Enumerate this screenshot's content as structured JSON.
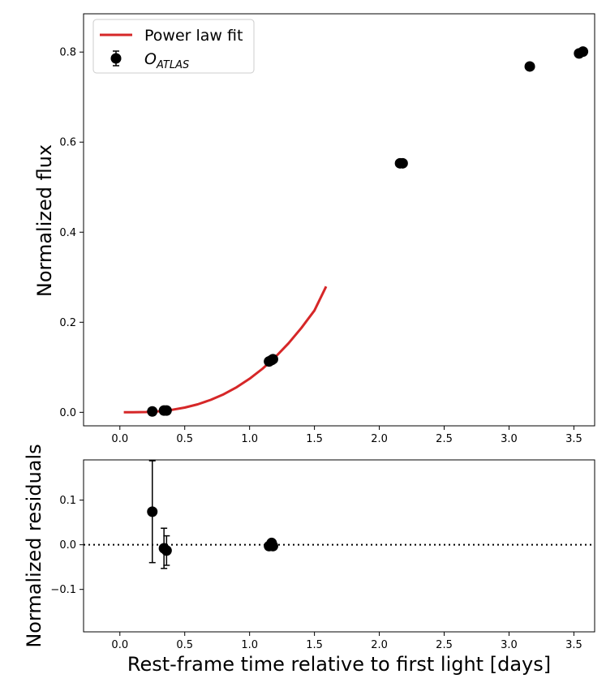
{
  "chart_data": [
    {
      "panel": "top",
      "type": "scatter",
      "ylabel": "Normalized flux",
      "xlabel": "",
      "xlim": [
        -0.28,
        3.66
      ],
      "ylim": [
        -0.03,
        0.885
      ],
      "xticks": [
        0.0,
        0.5,
        1.0,
        1.5,
        2.0,
        2.5,
        3.0,
        3.5
      ],
      "xtick_labels": [
        "0.0",
        "0.5",
        "1.0",
        "1.5",
        "2.0",
        "2.5",
        "3.0",
        "3.5"
      ],
      "yticks": [
        0.0,
        0.2,
        0.4,
        0.6,
        0.8
      ],
      "ytick_labels": [
        "0.0",
        "0.2",
        "0.4",
        "0.6",
        "0.8"
      ],
      "legend": {
        "placement": "upper-left",
        "entries": [
          {
            "label": "Power law fit",
            "kind": "line",
            "color": "#d62728"
          },
          {
            "label": "O",
            "subscript": "ATLAS",
            "kind": "errorbar-marker",
            "color": "#000000"
          }
        ]
      },
      "series": [
        {
          "name": "Power law fit",
          "kind": "line",
          "color": "#d62728",
          "x": [
            0.03,
            0.1,
            0.2,
            0.3,
            0.4,
            0.5,
            0.6,
            0.7,
            0.8,
            0.9,
            1.0,
            1.1,
            1.2,
            1.3,
            1.4,
            1.5,
            1.59
          ],
          "y": [
            0.0,
            0.0,
            0.0006,
            0.0023,
            0.0055,
            0.0105,
            0.0178,
            0.0276,
            0.0401,
            0.0557,
            0.0746,
            0.0969,
            0.1231,
            0.1532,
            0.1875,
            0.2262,
            0.2794
          ]
        },
        {
          "name": "O_ATLAS",
          "kind": "scatter",
          "color": "#000000",
          "x": [
            0.25,
            0.34,
            0.36,
            1.15,
            1.17,
            1.18,
            2.16,
            2.18,
            3.16,
            3.54,
            3.57
          ],
          "y": [
            0.002,
            0.004,
            0.004,
            0.113,
            0.116,
            0.118,
            0.553,
            0.553,
            0.768,
            0.797,
            0.801
          ]
        }
      ]
    },
    {
      "panel": "bottom",
      "type": "scatter",
      "ylabel": "Normalized residuals",
      "xlabel": "Rest-frame time relative to first light [days]",
      "xlim": [
        -0.28,
        3.66
      ],
      "ylim": [
        -0.195,
        0.19
      ],
      "xticks": [
        0.0,
        0.5,
        1.0,
        1.5,
        2.0,
        2.5,
        3.0,
        3.5
      ],
      "xtick_labels": [
        "0.0",
        "0.5",
        "1.0",
        "1.5",
        "2.0",
        "2.5",
        "3.0",
        "3.5"
      ],
      "yticks": [
        0.1,
        0.0,
        -0.1
      ],
      "ytick_labels": [
        "0.1",
        "0.0",
        "−0.1"
      ],
      "reference_line": {
        "y": 0.0,
        "style": "dotted",
        "color": "#000000"
      },
      "series": [
        {
          "name": "O_ATLAS residuals",
          "kind": "errorbar",
          "color": "#000000",
          "x": [
            0.25,
            0.34,
            0.36,
            1.15,
            1.17,
            1.18
          ],
          "y": [
            0.074,
            -0.008,
            -0.013,
            -0.003,
            0.004,
            -0.003
          ],
          "yerr": [
            0.114,
            0.045,
            0.033,
            0.0,
            0.0,
            0.0
          ]
        }
      ]
    }
  ]
}
